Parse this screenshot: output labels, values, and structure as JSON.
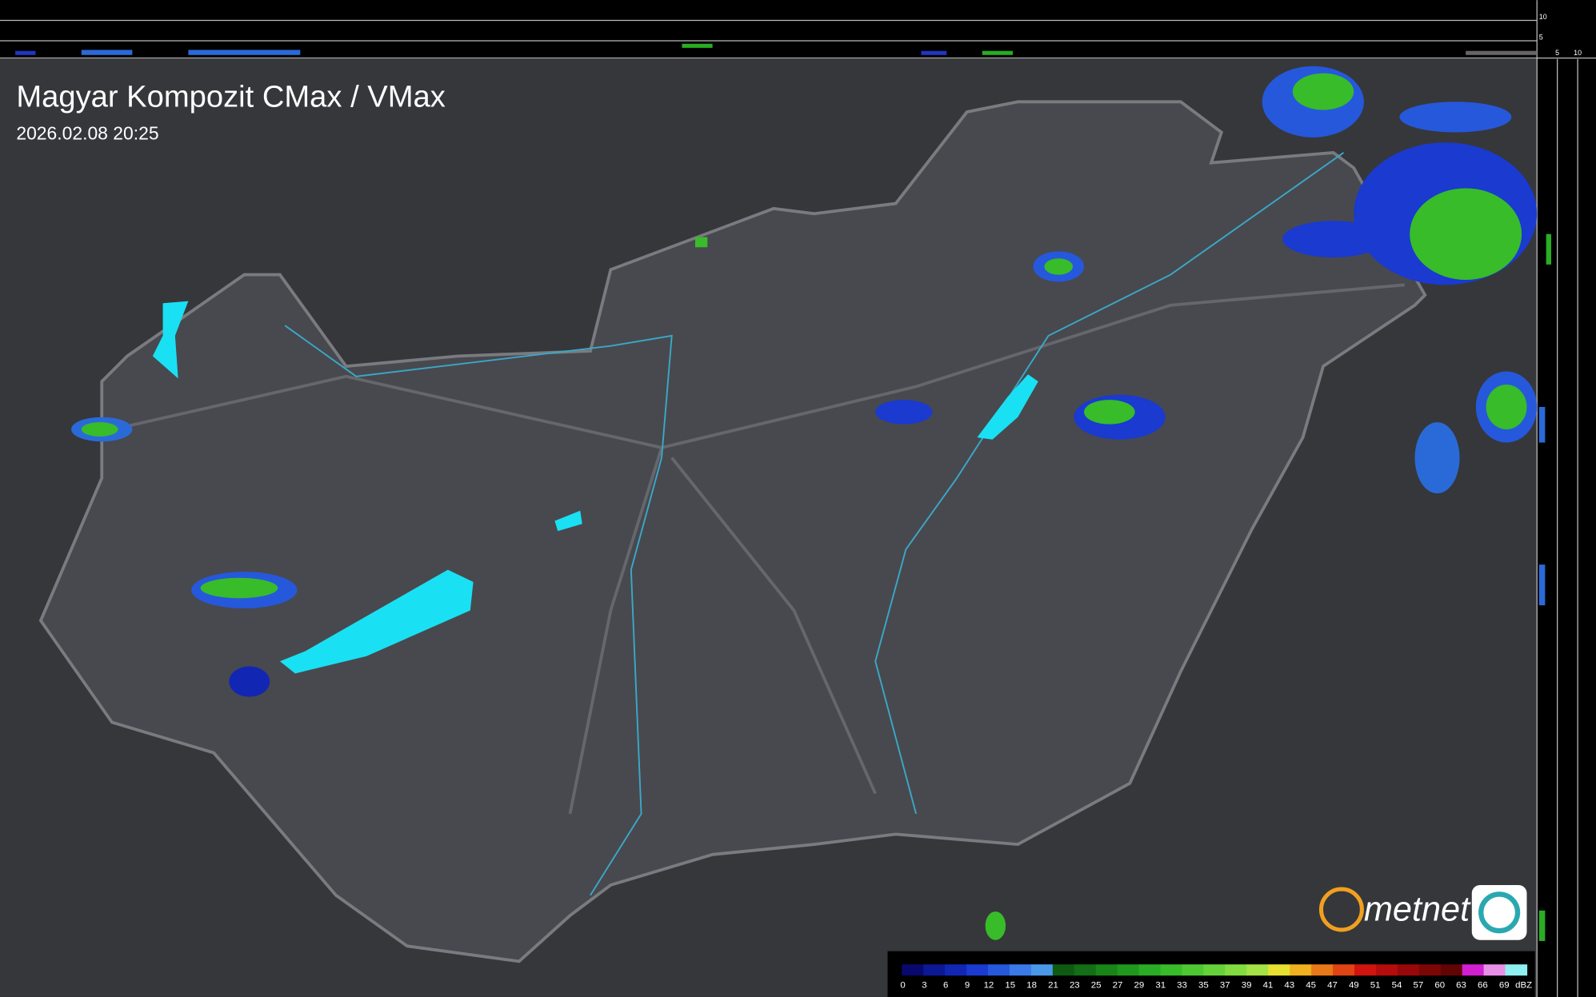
{
  "header": {
    "title": "Magyar Kompozit CMax / VMax",
    "timestamp": "2026.02.08 20:25"
  },
  "logo": {
    "text": "metnet"
  },
  "side_scale": {
    "top_labels": [
      "10",
      "5"
    ],
    "bottom_labels": [
      "5",
      "10"
    ]
  },
  "legend": {
    "unit": "dBZ",
    "labels": [
      0,
      3,
      6,
      9,
      12,
      15,
      18,
      21,
      23,
      25,
      27,
      29,
      31,
      33,
      35,
      37,
      39,
      41,
      43,
      45,
      47,
      49,
      51,
      54,
      57,
      60,
      63,
      66,
      69
    ],
    "colors": [
      "#08086e",
      "#0c1894",
      "#1226b4",
      "#1a3ad0",
      "#2658dc",
      "#3a7ae6",
      "#4a98e8",
      "#0e5a12",
      "#136e16",
      "#198418",
      "#20981e",
      "#2aac24",
      "#38bc2a",
      "#4ec832",
      "#66d23a",
      "#82dc40",
      "#a4e246",
      "#e8e030",
      "#f0b020",
      "#e87818",
      "#e04414",
      "#d01410",
      "#b40c0c",
      "#980808",
      "#7c0606",
      "#620404",
      "#d020d0",
      "#e890e8",
      "#90f0f0"
    ]
  }
}
